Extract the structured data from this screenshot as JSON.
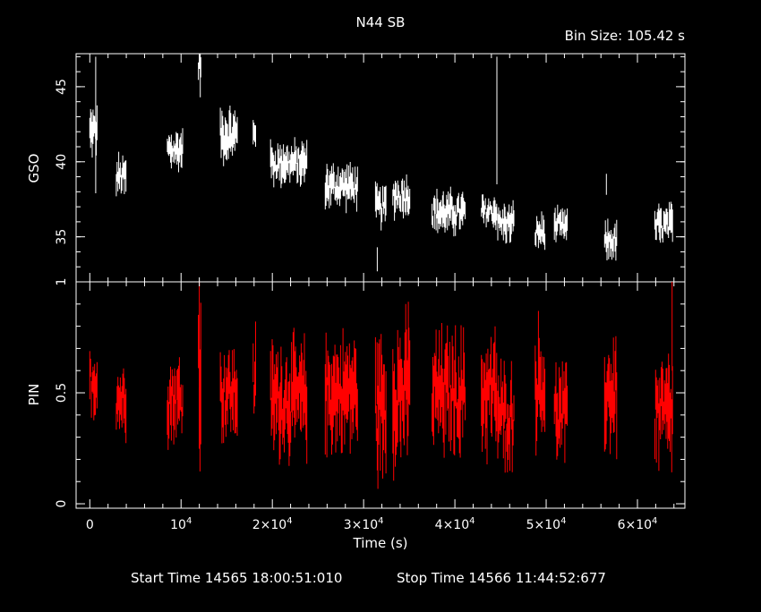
{
  "chart_data": [
    {
      "type": "line",
      "title": "N44 SB",
      "annotation": "Bin Size: 105.42 s",
      "ylabel": "GSO",
      "ylim": [
        32.0,
        47.2
      ],
      "yticks_major": [
        35,
        40,
        45
      ],
      "yticks_major_labels": [
        "35",
        "40",
        "45"
      ],
      "color": "#ffffff",
      "series": [
        {
          "segments": [
            {
              "x0": 0,
              "x1": 800,
              "mean": 42.0,
              "amp": 1.0,
              "extra": [
                [
                  650,
                  47.0,
                  37.9
                ]
              ]
            },
            {
              "x0": 2900,
              "x1": 4000,
              "mean": 39.0,
              "amp": 0.9
            },
            {
              "x0": 8500,
              "x1": 10200,
              "mean": 40.8,
              "amp": 0.9
            },
            {
              "x0": 11900,
              "x1": 12200,
              "mean": 46.5,
              "amp": 0.6,
              "extra": [
                [
                  12100,
                  47.2,
                  44.3
                ]
              ]
            },
            {
              "x0": 14300,
              "x1": 16200,
              "mean": 41.8,
              "amp": 1.1
            },
            {
              "x0": 17900,
              "x1": 18200,
              "mean": 42.2,
              "amp": 0.8
            },
            {
              "x0": 19800,
              "x1": 23800,
              "mean": 39.9,
              "amp": 0.9
            },
            {
              "x0": 25800,
              "x1": 29400,
              "mean": 38.4,
              "amp": 0.9
            },
            {
              "x0": 31300,
              "x1": 32500,
              "mean": 37.0,
              "amp": 0.9,
              "extra": [
                [
                  31500,
                  34.3,
                  32.7
                ]
              ]
            },
            {
              "x0": 33200,
              "x1": 35100,
              "mean": 37.8,
              "amp": 0.9
            },
            {
              "x0": 37500,
              "x1": 41200,
              "mean": 36.6,
              "amp": 0.9
            },
            {
              "x0": 42900,
              "x1": 44600,
              "mean": 36.7,
              "amp": 0.7,
              "extra": [
                [
                  44600,
                  47.0,
                  38.5
                ]
              ]
            },
            {
              "x0": 44700,
              "x1": 46500,
              "mean": 35.9,
              "amp": 0.8
            },
            {
              "x0": 48800,
              "x1": 49900,
              "mean": 35.3,
              "amp": 0.8
            },
            {
              "x0": 50900,
              "x1": 52400,
              "mean": 35.7,
              "amp": 0.7
            },
            {
              "x0": 56400,
              "x1": 57800,
              "mean": 34.7,
              "amp": 0.8,
              "extra": [
                [
                  56600,
                  39.2,
                  37.8
                ]
              ]
            },
            {
              "x0": 61900,
              "x1": 63900,
              "mean": 35.7,
              "amp": 0.9
            }
          ]
        }
      ]
    },
    {
      "type": "line",
      "xlabel": "Time (s)",
      "ylabel": "PIN",
      "ylim": [
        -0.02,
        1.0
      ],
      "xlim": [
        -1500,
        65200
      ],
      "yticks_major": [
        0,
        0.5,
        1
      ],
      "yticks_major_labels": [
        "0",
        "0.5",
        "1"
      ],
      "xticks_major": [
        0,
        10000,
        20000,
        30000,
        40000,
        50000,
        60000
      ],
      "xtick_labels": [
        {
          "base": "0",
          "exp": ""
        },
        {
          "base": "10",
          "exp": "4"
        },
        {
          "base": "2×10",
          "exp": "4"
        },
        {
          "base": "3×10",
          "exp": "4"
        },
        {
          "base": "4×10",
          "exp": "4"
        },
        {
          "base": "5×10",
          "exp": "4"
        },
        {
          "base": "6×10",
          "exp": "4"
        }
      ],
      "color": "#ff0000",
      "series": [
        {
          "segments": [
            {
              "x0": 0,
              "x1": 800,
              "mean": 0.55,
              "amp": 0.1
            },
            {
              "x0": 2900,
              "x1": 4000,
              "mean": 0.47,
              "amp": 0.1
            },
            {
              "x0": 8500,
              "x1": 10200,
              "mean": 0.47,
              "amp": 0.12
            },
            {
              "x0": 11900,
              "x1": 12200,
              "mean": 0.62,
              "amp": 0.3,
              "extra": [
                [
                  12000,
                  1.0,
                  0.29
                ]
              ]
            },
            {
              "x0": 14300,
              "x1": 16200,
              "mean": 0.5,
              "amp": 0.13
            },
            {
              "x0": 17900,
              "x1": 18200,
              "mean": 0.55,
              "amp": 0.15
            },
            {
              "x0": 19800,
              "x1": 23800,
              "mean": 0.47,
              "amp": 0.16
            },
            {
              "x0": 25800,
              "x1": 29400,
              "mean": 0.5,
              "amp": 0.16
            },
            {
              "x0": 31300,
              "x1": 32500,
              "mean": 0.45,
              "amp": 0.2,
              "extra": [
                [
                  31500,
                  0.34,
                  0.15
                ]
              ]
            },
            {
              "x0": 33200,
              "x1": 35100,
              "mean": 0.5,
              "amp": 0.2,
              "extra": [
                [
                  34900,
                  0.91,
                  0.5
                ]
              ]
            },
            {
              "x0": 37500,
              "x1": 41200,
              "mean": 0.5,
              "amp": 0.17
            },
            {
              "x0": 42900,
              "x1": 44600,
              "mean": 0.5,
              "amp": 0.17
            },
            {
              "x0": 44700,
              "x1": 46500,
              "mean": 0.4,
              "amp": 0.14,
              "extra": [
                [
                  45500,
                  0.33,
                  0.14
                ]
              ]
            },
            {
              "x0": 48800,
              "x1": 49900,
              "mean": 0.55,
              "amp": 0.17
            },
            {
              "x0": 50900,
              "x1": 52400,
              "mean": 0.4,
              "amp": 0.13
            },
            {
              "x0": 56400,
              "x1": 57800,
              "mean": 0.5,
              "amp": 0.17
            },
            {
              "x0": 61900,
              "x1": 63900,
              "mean": 0.4,
              "amp": 0.16,
              "extra": [
                [
                  63800,
                  1.0,
                  0.6
                ]
              ]
            }
          ]
        }
      ]
    }
  ],
  "footer": {
    "start": "Start Time 14565 18:00:51:010",
    "stop": "Stop Time 14566 11:44:52:677"
  }
}
